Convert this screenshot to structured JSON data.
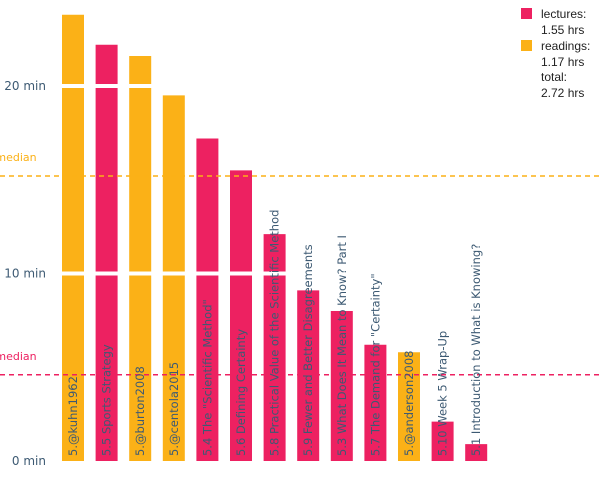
{
  "chart_data": {
    "type": "bar",
    "title": "",
    "xlabel": "",
    "ylabel": "",
    "y_unit": "min",
    "ylim": [
      0,
      24.5
    ],
    "y_ticks": [
      {
        "value": 0,
        "label": "0 min"
      },
      {
        "value": 10,
        "label": "10 min"
      },
      {
        "value": 20,
        "label": "20 min"
      }
    ],
    "categories": [
      "5.@kuhn1962",
      "5.5 Sports Strategy",
      "5.@burton2008",
      "5.@centola2015",
      "5.4 The \"Scientific Method\"",
      "5.6 Defining Certainty",
      "5.8 Practical Value of the Scientific Method",
      "5.9 Fewer and Better Disagreements",
      "5.3 What Does It Mean to Know? Part I",
      "5.7 The Demand for \"Certainty\"",
      "5.@anderson2008",
      "5.10 Week 5 Wrap-Up",
      "5.1 Introduction to What is Knowing?"
    ],
    "kinds": [
      "reading",
      "lecture",
      "reading",
      "reading",
      "lecture",
      "lecture",
      "lecture",
      "lecture",
      "lecture",
      "lecture",
      "reading",
      "lecture",
      "lecture"
    ],
    "values": [
      23.8,
      22.2,
      21.6,
      19.5,
      17.2,
      15.5,
      12.1,
      9.1,
      8.0,
      6.2,
      5.8,
      2.1,
      0.9
    ],
    "colors": {
      "lecture": "#ed2161",
      "reading": "#fbb117"
    },
    "medians": [
      {
        "name": "median",
        "series": "readings",
        "value": 15.2
      },
      {
        "name": "median",
        "series": "lectures",
        "value": 4.6
      }
    ],
    "legend": {
      "position": "top-right",
      "entries": [
        {
          "series": "lecture",
          "label": "lectures:",
          "value": "1.55 hrs"
        },
        {
          "series": "reading",
          "label": "readings:",
          "value": "1.17 hrs"
        }
      ],
      "total_label": "total:",
      "total_value": "2.72 hrs"
    }
  }
}
